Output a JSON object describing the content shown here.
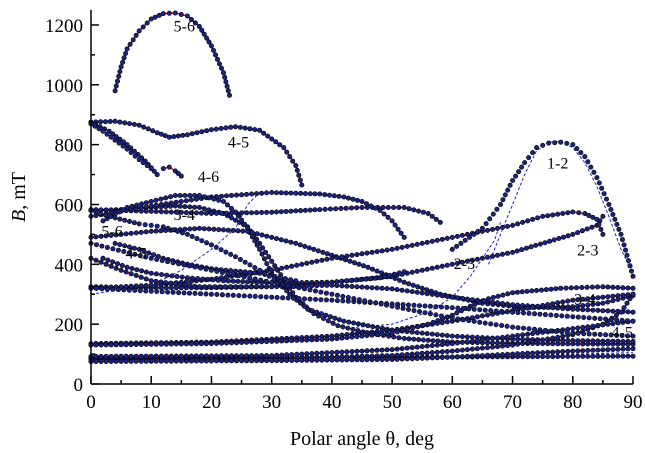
{
  "chart_data": {
    "type": "line",
    "title": "",
    "xlabel": "Polar angle θ, deg",
    "ylabel_italic": "B",
    "ylabel_rest": ", mT",
    "xlim": [
      0,
      90
    ],
    "ylim": [
      0,
      1250
    ],
    "xticks": [
      0,
      10,
      20,
      30,
      40,
      50,
      60,
      70,
      80,
      90
    ],
    "yticks": [
      0,
      200,
      400,
      600,
      800,
      1000,
      1200
    ],
    "grid": false,
    "legend": "none",
    "colors": {
      "experiment": "#1a237e",
      "experiment_edge": "#000000",
      "theory": "#e00000",
      "theory_dashed": "#2222cc"
    },
    "series": [
      {
        "kind": "solid",
        "points": [
          [
            4,
            980
          ],
          [
            5,
            1060
          ],
          [
            6,
            1120
          ],
          [
            8,
            1180
          ],
          [
            10,
            1220
          ],
          [
            12,
            1238
          ],
          [
            14,
            1240
          ],
          [
            16,
            1230
          ],
          [
            18,
            1195
          ],
          [
            20,
            1130
          ],
          [
            22,
            1040
          ],
          [
            23,
            965
          ]
        ]
      },
      {
        "kind": "solid",
        "points": [
          [
            0,
            875
          ],
          [
            4,
            878
          ],
          [
            8,
            865
          ],
          [
            11,
            840
          ],
          [
            13,
            825
          ],
          [
            16,
            833
          ],
          [
            20,
            850
          ],
          [
            24,
            860
          ],
          [
            28,
            848
          ],
          [
            32,
            790
          ],
          [
            34,
            730
          ],
          [
            35,
            665
          ]
        ]
      },
      {
        "kind": "solid",
        "points": [
          [
            0,
            875
          ],
          [
            3,
            845
          ],
          [
            6,
            800
          ],
          [
            9,
            745
          ],
          [
            11,
            700
          ]
        ]
      },
      {
        "kind": "solid",
        "points": [
          [
            12,
            720
          ],
          [
            13,
            725
          ],
          [
            14,
            712
          ],
          [
            15,
            695
          ]
        ]
      },
      {
        "kind": "solid",
        "points": [
          [
            0,
            580
          ],
          [
            5,
            583
          ],
          [
            10,
            590
          ],
          [
            14,
            595
          ],
          [
            18,
            590
          ],
          [
            22,
            570
          ],
          [
            26,
            525
          ],
          [
            28,
            470
          ],
          [
            30,
            410
          ],
          [
            32,
            350
          ],
          [
            34,
            290
          ],
          [
            37,
            235
          ],
          [
            41,
            195
          ],
          [
            46,
            170
          ],
          [
            52,
            152
          ],
          [
            60,
            140
          ],
          [
            70,
            136
          ],
          [
            80,
            134
          ],
          [
            90,
            133
          ]
        ]
      },
      {
        "kind": "solid",
        "points": [
          [
            0,
            583
          ],
          [
            10,
            577
          ],
          [
            20,
            570
          ],
          [
            30,
            574
          ],
          [
            38,
            583
          ],
          [
            45,
            590
          ],
          [
            52,
            590
          ],
          [
            56,
            570
          ],
          [
            58,
            540
          ]
        ]
      },
      {
        "kind": "solid",
        "points": [
          [
            0,
            560
          ],
          [
            10,
            595
          ],
          [
            20,
            625
          ],
          [
            30,
            640
          ],
          [
            38,
            635
          ],
          [
            42,
            625
          ],
          [
            45,
            610
          ],
          [
            48,
            580
          ],
          [
            50,
            545
          ],
          [
            52,
            490
          ]
        ]
      },
      {
        "kind": "solid",
        "points": [
          [
            2,
            545
          ],
          [
            6,
            590
          ],
          [
            10,
            610
          ],
          [
            14,
            630
          ],
          [
            18,
            630
          ],
          [
            22,
            610
          ],
          [
            24,
            575
          ],
          [
            26,
            520
          ],
          [
            28,
            450
          ],
          [
            30,
            370
          ],
          [
            33,
            300
          ],
          [
            36,
            250
          ],
          [
            42,
            210
          ],
          [
            50,
            180
          ],
          [
            60,
            160
          ],
          [
            70,
            150
          ],
          [
            80,
            145
          ],
          [
            90,
            142
          ]
        ]
      },
      {
        "kind": "solid",
        "points": [
          [
            0,
            490
          ],
          [
            10,
            510
          ],
          [
            18,
            520
          ],
          [
            26,
            510
          ],
          [
            34,
            470
          ],
          [
            40,
            430
          ],
          [
            46,
            390
          ],
          [
            52,
            340
          ],
          [
            58,
            300
          ],
          [
            65,
            270
          ],
          [
            72,
            255
          ],
          [
            80,
            258
          ],
          [
            85,
            270
          ],
          [
            90,
            295
          ]
        ]
      },
      {
        "kind": "solid",
        "points": [
          [
            0,
            325
          ],
          [
            10,
            322
          ],
          [
            20,
            322
          ],
          [
            30,
            326
          ],
          [
            40,
            340
          ],
          [
            50,
            360
          ],
          [
            60,
            400
          ],
          [
            70,
            440
          ],
          [
            80,
            500
          ],
          [
            84,
            530
          ],
          [
            85,
            560
          ]
        ]
      },
      {
        "kind": "solid",
        "points": [
          [
            0,
            320
          ],
          [
            10,
            330
          ],
          [
            20,
            350
          ],
          [
            30,
            380
          ],
          [
            40,
            420
          ],
          [
            50,
            450
          ],
          [
            60,
            490
          ],
          [
            70,
            530
          ],
          [
            75,
            560
          ],
          [
            80,
            575
          ],
          [
            82,
            570
          ],
          [
            84,
            550
          ],
          [
            85,
            500
          ]
        ]
      },
      {
        "kind": "solid",
        "points": [
          [
            2,
            420
          ],
          [
            6,
            390
          ],
          [
            10,
            370
          ],
          [
            16,
            355
          ],
          [
            22,
            345
          ],
          [
            30,
            338
          ],
          [
            40,
            340
          ],
          [
            48,
            355
          ],
          [
            52,
            375
          ]
        ]
      },
      {
        "kind": "solid",
        "points": [
          [
            0,
            420
          ],
          [
            5,
            380
          ],
          [
            10,
            345
          ],
          [
            18,
            325
          ],
          [
            30,
            325
          ],
          [
            40,
            330
          ],
          [
            50,
            318
          ],
          [
            60,
            290
          ],
          [
            70,
            265
          ],
          [
            80,
            250
          ],
          [
            90,
            240
          ]
        ]
      },
      {
        "kind": "solid",
        "points": [
          [
            4,
            470
          ],
          [
            8,
            450
          ],
          [
            12,
            420
          ],
          [
            16,
            400
          ],
          [
            20,
            385
          ],
          [
            28,
            370
          ],
          [
            34,
            345
          ]
        ]
      },
      {
        "kind": "solid",
        "points": [
          [
            0,
            135
          ],
          [
            20,
            140
          ],
          [
            40,
            160
          ],
          [
            50,
            180
          ],
          [
            60,
            210
          ],
          [
            70,
            245
          ],
          [
            80,
            280
          ],
          [
            90,
            300
          ]
        ]
      },
      {
        "kind": "solid",
        "points": [
          [
            0,
            130
          ],
          [
            20,
            135
          ],
          [
            40,
            150
          ],
          [
            50,
            170
          ],
          [
            56,
            200
          ],
          [
            60,
            230
          ],
          [
            63,
            260
          ],
          [
            66,
            285
          ],
          [
            70,
            305
          ],
          [
            78,
            320
          ],
          [
            85,
            325
          ],
          [
            90,
            320
          ]
        ]
      },
      {
        "kind": "solid",
        "points": [
          [
            0,
            88
          ],
          [
            20,
            88
          ],
          [
            40,
            89
          ],
          [
            60,
            90
          ],
          [
            80,
            92
          ],
          [
            90,
            93
          ]
        ]
      },
      {
        "kind": "solid",
        "points": [
          [
            0,
            82
          ],
          [
            30,
            85
          ],
          [
            50,
            95
          ],
          [
            60,
            110
          ],
          [
            70,
            130
          ],
          [
            80,
            165
          ],
          [
            85,
            200
          ],
          [
            88,
            240
          ],
          [
            90,
            300
          ]
        ]
      },
      {
        "kind": "solid",
        "points": [
          [
            0,
            75
          ],
          [
            30,
            78
          ],
          [
            50,
            82
          ],
          [
            60,
            90
          ],
          [
            70,
            100
          ],
          [
            80,
            110
          ],
          [
            90,
            118
          ]
        ]
      },
      {
        "kind": "solid",
        "points": [
          [
            0,
            92
          ],
          [
            30,
            95
          ],
          [
            50,
            115
          ],
          [
            60,
            135
          ],
          [
            70,
            160
          ],
          [
            80,
            185
          ],
          [
            90,
            210
          ]
        ]
      },
      {
        "kind": "dashed",
        "points": [
          [
            66,
            400
          ],
          [
            68,
            500
          ],
          [
            70,
            600
          ],
          [
            72,
            700
          ],
          [
            74,
            780
          ],
          [
            76,
            808
          ],
          [
            78,
            810
          ],
          [
            80,
            790
          ],
          [
            82,
            740
          ],
          [
            84,
            660
          ],
          [
            86,
            560
          ],
          [
            88,
            450
          ],
          [
            90,
            370
          ]
        ]
      },
      {
        "kind": "dashed",
        "points": [
          [
            44,
            190
          ],
          [
            50,
            200
          ],
          [
            56,
            240
          ],
          [
            60,
            290
          ],
          [
            63,
            360
          ],
          [
            65,
            420
          ],
          [
            67,
            480
          ],
          [
            68,
            540
          ]
        ]
      },
      {
        "kind": "dashed",
        "points": [
          [
            0,
            300
          ],
          [
            10,
            330
          ],
          [
            15,
            380
          ],
          [
            20,
            450
          ],
          [
            24,
            520
          ],
          [
            26,
            600
          ],
          [
            28,
            640
          ]
        ]
      },
      {
        "kind": "dashed",
        "points": [
          [
            0,
            90
          ],
          [
            40,
            92
          ],
          [
            60,
            95
          ],
          [
            80,
            100
          ],
          [
            90,
            105
          ]
        ]
      }
    ],
    "dotted_only": [
      {
        "points": [
          [
            0,
            870
          ],
          [
            2,
            845
          ],
          [
            4,
            815
          ],
          [
            6,
            785
          ],
          [
            8,
            750
          ],
          [
            10,
            720
          ]
        ]
      },
      {
        "points": [
          [
            60,
            450
          ],
          [
            65,
            520
          ],
          [
            68,
            600
          ],
          [
            70,
            680
          ],
          [
            72,
            740
          ],
          [
            74,
            790
          ],
          [
            76,
            805
          ],
          [
            78,
            808
          ],
          [
            80,
            800
          ],
          [
            82,
            760
          ],
          [
            84,
            690
          ],
          [
            86,
            600
          ],
          [
            88,
            500
          ],
          [
            90,
            360
          ]
        ]
      },
      {
        "points": [
          [
            0,
            580
          ],
          [
            4,
            555
          ],
          [
            8,
            535
          ],
          [
            12,
            525
          ],
          [
            16,
            500
          ],
          [
            20,
            465
          ],
          [
            24,
            425
          ],
          [
            28,
            380
          ],
          [
            32,
            330
          ]
        ]
      },
      {
        "points": [
          [
            0,
            320
          ],
          [
            20,
            300
          ],
          [
            40,
            280
          ],
          [
            60,
            255
          ],
          [
            70,
            240
          ],
          [
            80,
            225
          ],
          [
            90,
            210
          ]
        ]
      },
      {
        "points": [
          [
            0,
            470
          ],
          [
            10,
            420
          ],
          [
            20,
            380
          ],
          [
            30,
            340
          ],
          [
            40,
            300
          ],
          [
            50,
            260
          ],
          [
            60,
            220
          ],
          [
            70,
            190
          ],
          [
            80,
            170
          ],
          [
            90,
            160
          ]
        ]
      }
    ],
    "annotations": [
      {
        "text": "5-6",
        "x": 15.5,
        "y": 1178
      },
      {
        "text": "4-5",
        "x": 24.5,
        "y": 790
      },
      {
        "text": "4-6",
        "x": 19.5,
        "y": 675
      },
      {
        "text": "3-4",
        "x": 15.5,
        "y": 548
      },
      {
        "text": "5-6",
        "x": 3.5,
        "y": 493
      },
      {
        "text": "4-5",
        "x": 7.5,
        "y": 420
      },
      {
        "text": "1-2",
        "x": 77.5,
        "y": 720
      },
      {
        "text": "2-3",
        "x": 62,
        "y": 385
      },
      {
        "text": "2-3",
        "x": 82.5,
        "y": 430
      },
      {
        "text": "3-4",
        "x": 82,
        "y": 265
      },
      {
        "text": "4-5",
        "x": 88.2,
        "y": 155
      }
    ]
  }
}
